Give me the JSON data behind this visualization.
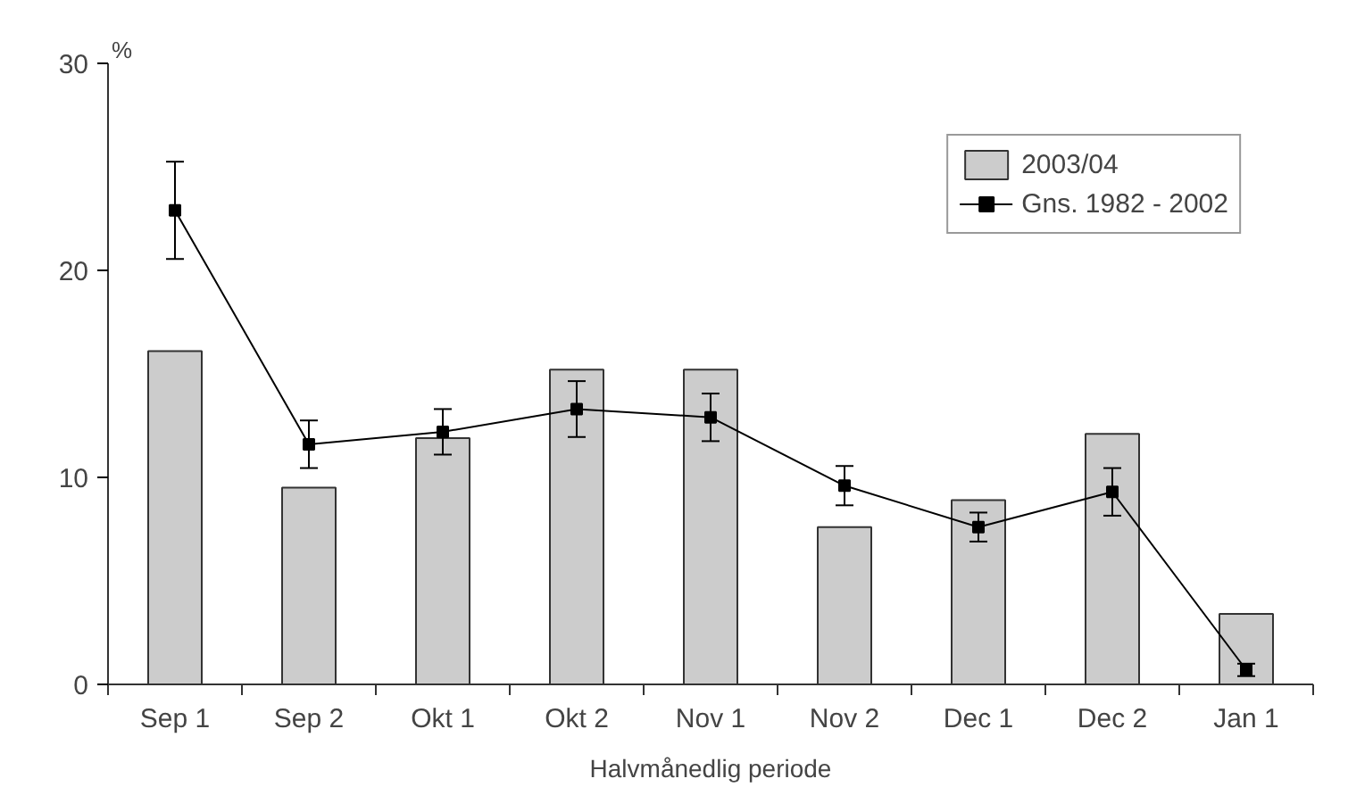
{
  "chart_data": {
    "type": "bar",
    "xlabel": "Halvmånedlig periode",
    "ylabel": "%",
    "categories": [
      "Sep 1",
      "Sep 2",
      "Okt 1",
      "Okt 2",
      "Nov 1",
      "Nov 2",
      "Dec 1",
      "Dec 2",
      "Jan 1"
    ],
    "series": [
      {
        "name": "2003/04",
        "color": "#cccccc",
        "values": [
          16.1,
          9.5,
          11.9,
          15.2,
          15.2,
          7.6,
          8.9,
          12.1,
          3.4
        ]
      },
      {
        "name": "Gns. 1982 - 2002",
        "type": "line",
        "color": "#000000",
        "marker": "square",
        "values": [
          22.9,
          11.6,
          12.2,
          13.3,
          12.9,
          9.6,
          7.6,
          9.3,
          0.7
        ],
        "errors": [
          2.35,
          1.15,
          1.1,
          1.35,
          1.15,
          0.95,
          0.7,
          1.15,
          0.3
        ]
      }
    ],
    "ylim": [
      0,
      30
    ],
    "yticks": [
      0,
      10,
      20,
      30
    ],
    "grid": false,
    "legend": "top right"
  }
}
